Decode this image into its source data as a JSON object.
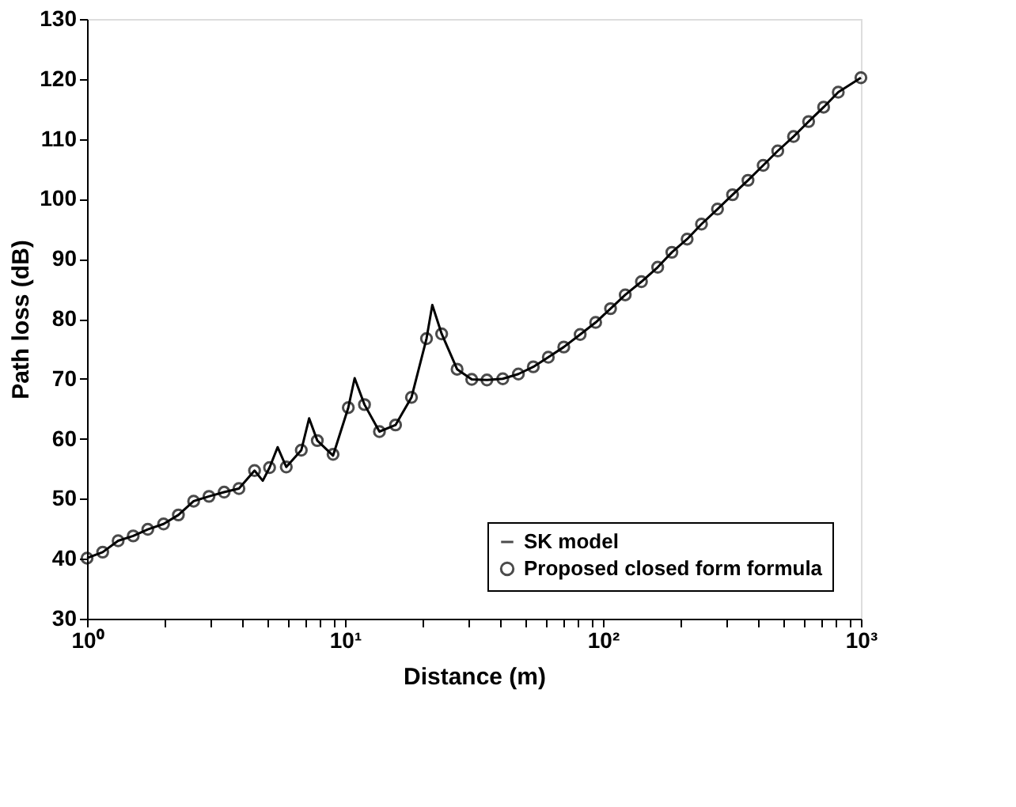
{
  "chart_data": {
    "type": "line",
    "xlabel": "Distance (m)",
    "ylabel": "Path loss (dB)",
    "log": "x",
    "xlim": [
      1,
      1000
    ],
    "ylim": [
      30,
      130
    ],
    "xticks": [
      {
        "value": 1,
        "label": "10⁰"
      },
      {
        "value": 2,
        "label": null
      },
      {
        "value": 3,
        "label": null
      },
      {
        "value": 4,
        "label": null
      },
      {
        "value": 5,
        "label": null
      },
      {
        "value": 6,
        "label": null
      },
      {
        "value": 7,
        "label": null
      },
      {
        "value": 8,
        "label": null
      },
      {
        "value": 9,
        "label": null
      },
      {
        "value": 10,
        "label": "10¹"
      },
      {
        "value": 20,
        "label": null
      },
      {
        "value": 30,
        "label": null
      },
      {
        "value": 40,
        "label": null
      },
      {
        "value": 50,
        "label": null
      },
      {
        "value": 60,
        "label": null
      },
      {
        "value": 70,
        "label": null
      },
      {
        "value": 80,
        "label": null
      },
      {
        "value": 90,
        "label": null
      },
      {
        "value": 100,
        "label": "10²"
      },
      {
        "value": 200,
        "label": null
      },
      {
        "value": 300,
        "label": null
      },
      {
        "value": 400,
        "label": null
      },
      {
        "value": 500,
        "label": null
      },
      {
        "value": 600,
        "label": null
      },
      {
        "value": 700,
        "label": null
      },
      {
        "value": 800,
        "label": null
      },
      {
        "value": 900,
        "label": null
      },
      {
        "value": 1000,
        "label": "10³"
      }
    ],
    "yticks": [
      30,
      40,
      50,
      60,
      70,
      80,
      90,
      100,
      110,
      120,
      130
    ],
    "grid": false,
    "legend": "bottom right",
    "series": [
      {
        "name": "SK model",
        "color": "#000000",
        "line_style": "solid",
        "marker": "none",
        "x": [
          1.0,
          1.15,
          1.32,
          1.51,
          1.72,
          1.98,
          2.26,
          2.59,
          2.97,
          3.4,
          3.88,
          4.46,
          4.8,
          5.1,
          5.48,
          5.92,
          6.77,
          7.26,
          7.81,
          8.99,
          10.3,
          10.9,
          11.9,
          13.6,
          15.7,
          18.1,
          20.7,
          21.8,
          23.7,
          27.2,
          31.0,
          35.5,
          40.9,
          47.0,
          53.7,
          61.4,
          70.5,
          81.6,
          93.7,
          107,
          122,
          141,
          163,
          185,
          212,
          241,
          278,
          318,
          365,
          418,
          476,
          548,
          627,
          717,
          817,
          1000
        ],
        "values": [
          40.1,
          41.1,
          43.0,
          43.8,
          44.9,
          45.8,
          47.3,
          49.6,
          50.4,
          51.1,
          51.7,
          54.7,
          53.0,
          55.2,
          58.6,
          55.3,
          58.1,
          63.4,
          59.7,
          57.2,
          65.2,
          70.1,
          65.7,
          61.2,
          62.3,
          66.9,
          76.7,
          82.3,
          77.5,
          71.6,
          69.9,
          69.8,
          70.0,
          70.8,
          72.0,
          73.6,
          75.3,
          77.4,
          79.4,
          81.7,
          84.0,
          86.2,
          88.6,
          91.1,
          93.3,
          95.8,
          98.3,
          100.7,
          103.1,
          105.6,
          108.0,
          110.4,
          112.9,
          115.3,
          117.8,
          120.2
        ]
      },
      {
        "name": "Proposed closed form formula",
        "type": "scatter",
        "color": "#000000",
        "marker": "circle",
        "x": [
          1.0,
          1.15,
          1.32,
          1.51,
          1.72,
          1.98,
          2.26,
          2.59,
          2.97,
          3.4,
          3.88,
          4.46,
          5.1,
          5.92,
          6.77,
          7.81,
          8.99,
          10.3,
          11.9,
          13.6,
          15.7,
          18.1,
          20.7,
          23.7,
          27.2,
          31.0,
          35.5,
          40.9,
          47.0,
          53.7,
          61.4,
          70.5,
          81.6,
          93.7,
          107,
          122,
          141,
          163,
          185,
          212,
          241,
          278,
          318,
          365,
          418,
          476,
          548,
          627,
          717,
          817,
          1000
        ],
        "values": [
          40.1,
          41.1,
          43.0,
          43.8,
          44.9,
          45.8,
          47.3,
          49.6,
          50.4,
          51.1,
          51.7,
          54.7,
          55.2,
          55.3,
          58.1,
          59.7,
          57.4,
          65.2,
          65.7,
          61.2,
          62.3,
          66.9,
          76.7,
          77.5,
          71.6,
          69.9,
          69.8,
          70.0,
          70.8,
          72.0,
          73.6,
          75.3,
          77.4,
          79.4,
          81.7,
          84.0,
          86.2,
          88.6,
          91.1,
          93.3,
          95.8,
          98.3,
          100.7,
          103.1,
          105.6,
          108.0,
          110.4,
          112.9,
          115.3,
          117.8,
          120.2
        ]
      }
    ]
  }
}
